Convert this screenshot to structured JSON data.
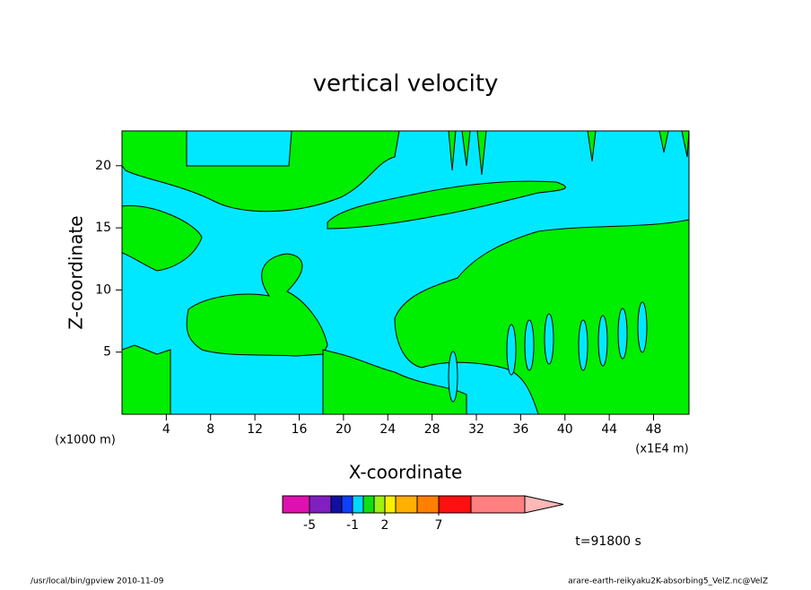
{
  "chart_data": {
    "type": "contour",
    "title": "vertical velocity",
    "x_label": "X-coordinate",
    "y_label": "Z-coordinate",
    "x_unit": "(x1E4 m)",
    "y_unit": "(x1000 m)",
    "xlim": [
      0,
      51.2
    ],
    "ylim": [
      0,
      22.8
    ],
    "xticks": [
      4,
      8,
      12,
      16,
      20,
      24,
      28,
      32,
      36,
      40,
      44,
      48
    ],
    "yticks": [
      5,
      10,
      15,
      20
    ],
    "background_color": "#00e8ff",
    "fill_color": "#00ee00",
    "colorbar": {
      "lim": [
        -7.5,
        15
      ],
      "levels": [
        -7.5,
        -5,
        -3,
        -2,
        -1,
        0,
        1,
        2,
        3,
        5,
        7,
        10,
        15
      ],
      "colors": [
        "#e010b0",
        "#8020c0",
        "#1010a0",
        "#1040ff",
        "#00d8ff",
        "#10e010",
        "#a0f010",
        "#f8f000",
        "#ffb000",
        "#ff8000",
        "#ff1010",
        "#ff8080"
      ],
      "arrow_color": "#ffb8b8",
      "ticks": [
        -5,
        -1,
        2,
        7
      ]
    },
    "annotation": "t=91800 s",
    "footer_left": "/usr/local/bin/gpview   2010-11-09",
    "footer_right": "arare-earth-reikyaku2K-absorbing5_VelZ.nc@VelZ"
  }
}
